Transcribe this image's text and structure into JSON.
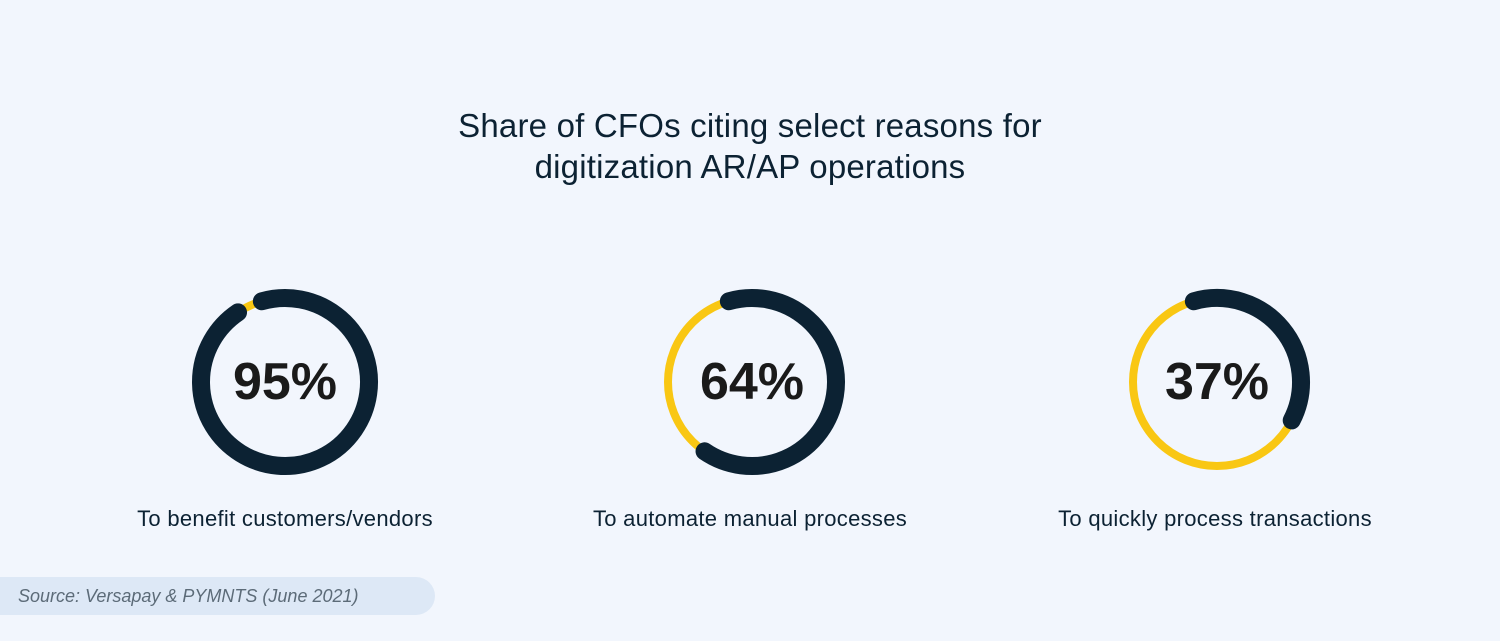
{
  "chart_data": {
    "type": "pie",
    "title": "Share of CFOs citing select reasons for digitization AR/AP operations",
    "title_lines": [
      "Share of CFOs citing select reasons for",
      "digitization AR/AP operations"
    ],
    "unit": "%",
    "colors": {
      "value": "#0c2233",
      "remainder": "#f9c713",
      "background": "#f2f6fd"
    },
    "items": [
      {
        "label": "To benefit customers/vendors",
        "value": 95,
        "display": "95%"
      },
      {
        "label": "To automate manual processes",
        "value": 64,
        "display": "64%"
      },
      {
        "label": "To quickly process transactions",
        "value": 37,
        "display": "37%"
      }
    ]
  },
  "source": "Source: Versapay & PYMNTS (June 2021)"
}
